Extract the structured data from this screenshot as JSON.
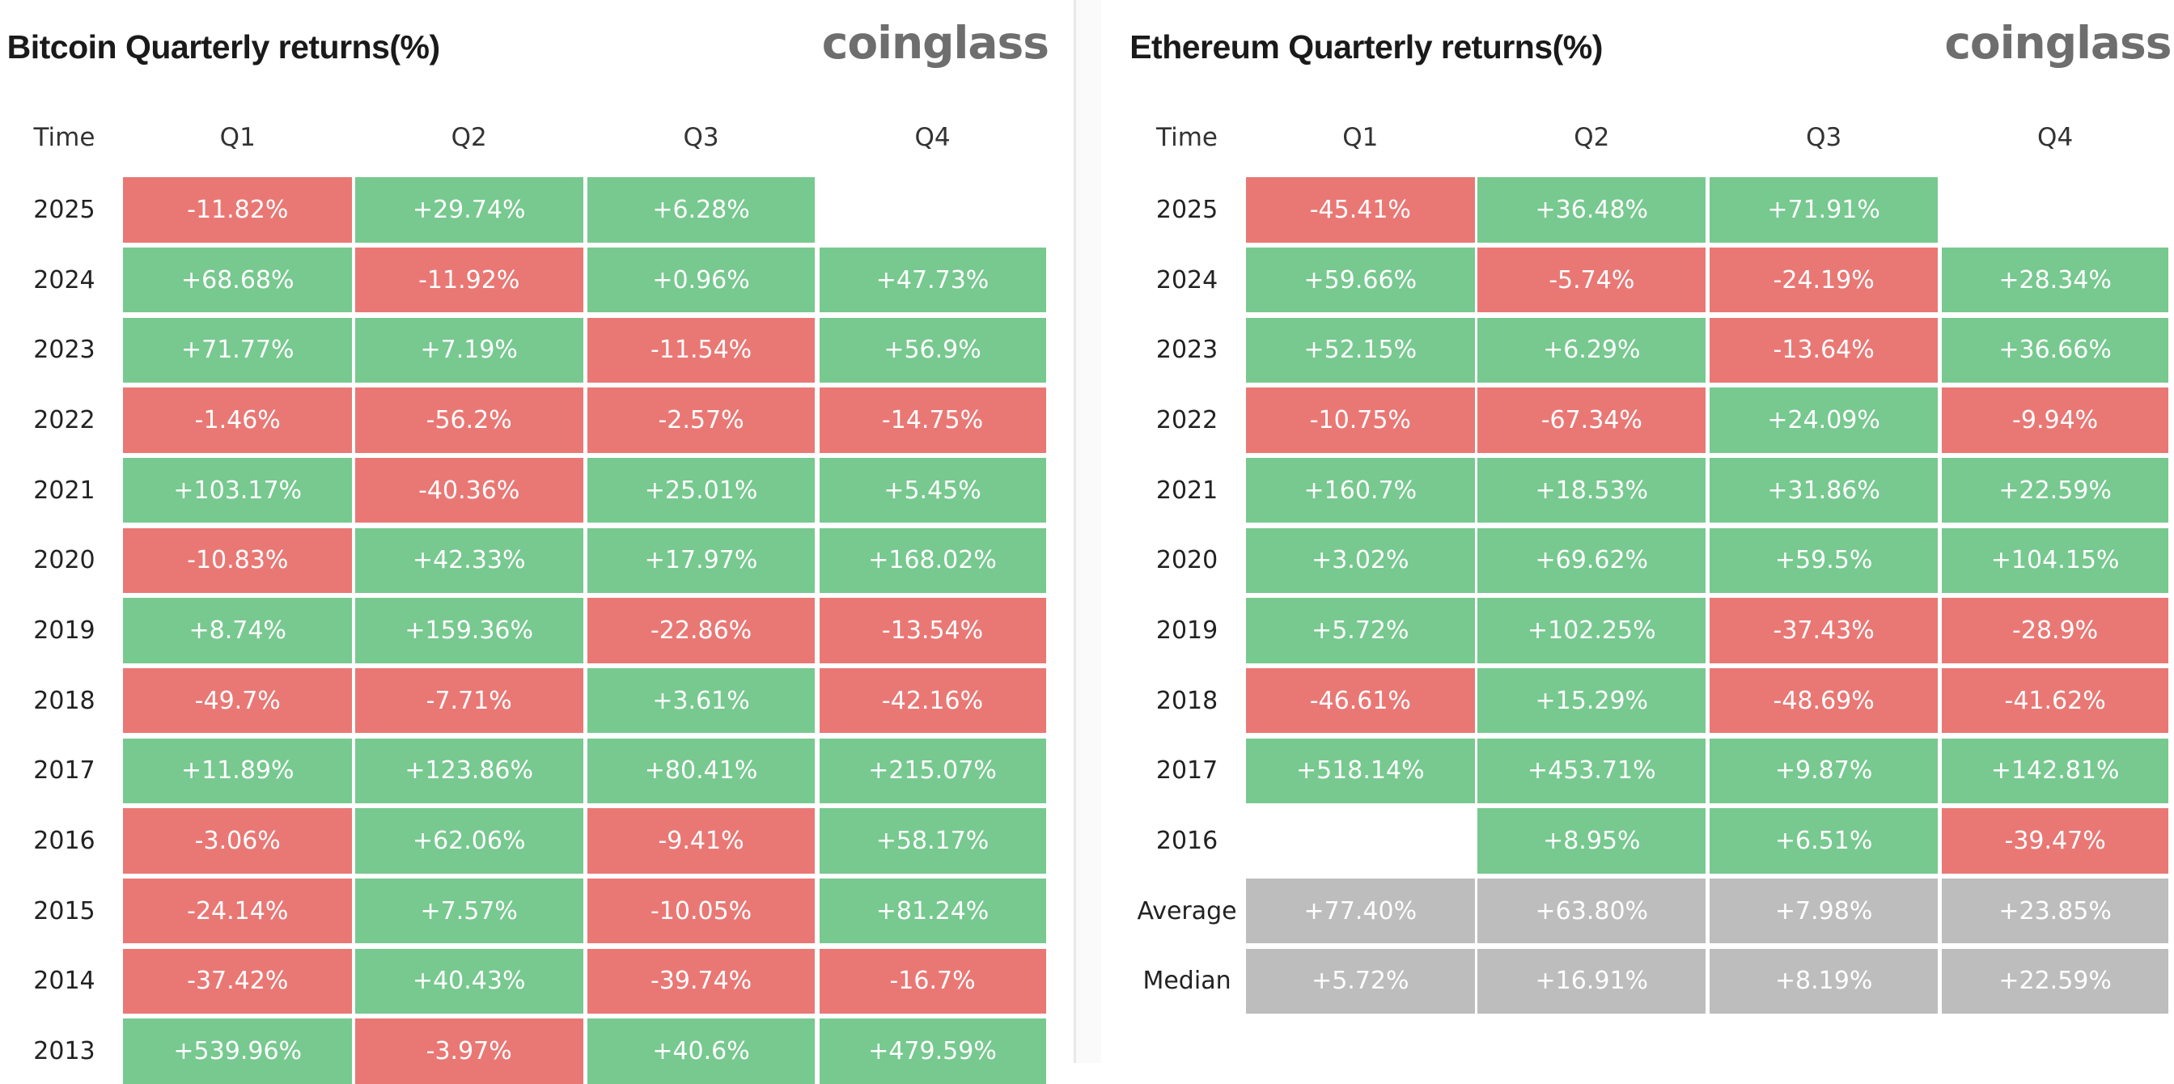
{
  "colors": {
    "positive": "#77c98f",
    "negative": "#e97875",
    "summary": "#bdbdbd"
  },
  "panels": [
    {
      "title": "Bitcoin Quarterly returns(%)",
      "logo": "coinglass",
      "table": {
        "header": [
          "Time",
          "Q1",
          "Q2",
          "Q3",
          "Q4"
        ],
        "rows": [
          [
            "2025",
            "-11.82%",
            "+29.74%",
            "+6.28%",
            null
          ],
          [
            "2024",
            "+68.68%",
            "-11.92%",
            "+0.96%",
            "+47.73%"
          ],
          [
            "2023",
            "+71.77%",
            "+7.19%",
            "-11.54%",
            "+56.9%"
          ],
          [
            "2022",
            "-1.46%",
            "-56.2%",
            "-2.57%",
            "-14.75%"
          ],
          [
            "2021",
            "+103.17%",
            "-40.36%",
            "+25.01%",
            "+5.45%"
          ],
          [
            "2020",
            "-10.83%",
            "+42.33%",
            "+17.97%",
            "+168.02%"
          ],
          [
            "2019",
            "+8.74%",
            "+159.36%",
            "-22.86%",
            "-13.54%"
          ],
          [
            "2018",
            "-49.7%",
            "-7.71%",
            "+3.61%",
            "-42.16%"
          ],
          [
            "2017",
            "+11.89%",
            "+123.86%",
            "+80.41%",
            "+215.07%"
          ],
          [
            "2016",
            "-3.06%",
            "+62.06%",
            "-9.41%",
            "+58.17%"
          ],
          [
            "2015",
            "-24.14%",
            "+7.57%",
            "-10.05%",
            "+81.24%"
          ],
          [
            "2014",
            "-37.42%",
            "+40.43%",
            "-39.74%",
            "-16.7%"
          ],
          [
            "2013",
            "+539.96%",
            "-3.97%",
            "+40.6%",
            "+479.59%"
          ]
        ],
        "summary_rows": []
      }
    },
    {
      "title": "Ethereum Quarterly returns(%)",
      "logo": "coinglass",
      "table": {
        "header": [
          "Time",
          "Q1",
          "Q2",
          "Q3",
          "Q4"
        ],
        "rows": [
          [
            "2025",
            "-45.41%",
            "+36.48%",
            "+71.91%",
            null
          ],
          [
            "2024",
            "+59.66%",
            "-5.74%",
            "-24.19%",
            "+28.34%"
          ],
          [
            "2023",
            "+52.15%",
            "+6.29%",
            "-13.64%",
            "+36.66%"
          ],
          [
            "2022",
            "-10.75%",
            "-67.34%",
            "+24.09%",
            "-9.94%"
          ],
          [
            "2021",
            "+160.7%",
            "+18.53%",
            "+31.86%",
            "+22.59%"
          ],
          [
            "2020",
            "+3.02%",
            "+69.62%",
            "+59.5%",
            "+104.15%"
          ],
          [
            "2019",
            "+5.72%",
            "+102.25%",
            "-37.43%",
            "-28.9%"
          ],
          [
            "2018",
            "-46.61%",
            "+15.29%",
            "-48.69%",
            "-41.62%"
          ],
          [
            "2017",
            "+518.14%",
            "+453.71%",
            "+9.87%",
            "+142.81%"
          ],
          [
            "2016",
            null,
            "+8.95%",
            "+6.51%",
            "-39.47%"
          ]
        ],
        "summary_rows": [
          [
            "Average",
            "+77.40%",
            "+63.80%",
            "+7.98%",
            "+23.85%"
          ],
          [
            "Median",
            "+5.72%",
            "+16.91%",
            "+8.19%",
            "+22.59%"
          ]
        ]
      }
    }
  ]
}
